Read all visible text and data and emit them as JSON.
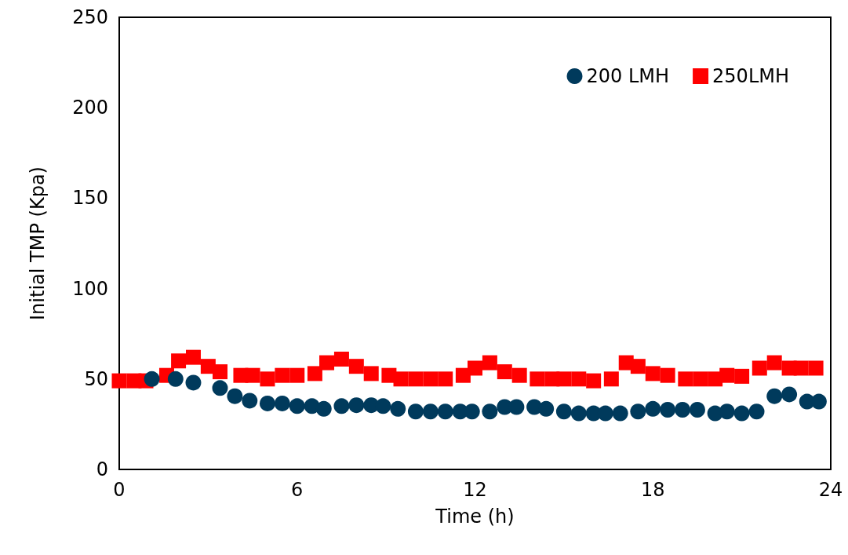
{
  "chart_data": {
    "type": "scatter",
    "xlabel": "Time (h)",
    "ylabel": "Initial TMP (Kpa)",
    "xlim": [
      0,
      24
    ],
    "xticks": [
      0,
      6,
      12,
      18,
      24
    ],
    "ylim": [
      0,
      250
    ],
    "yticks": [
      0,
      50,
      100,
      150,
      200,
      250
    ],
    "grid": false,
    "legend": "top right",
    "series": [
      {
        "name": "200 LMH",
        "color": "#003a5c",
        "marker": "circle",
        "x": [
          1.1,
          1.9,
          2.5,
          3.4,
          3.9,
          4.4,
          5.0,
          5.5,
          6.0,
          6.5,
          6.9,
          7.5,
          8.0,
          8.5,
          8.9,
          9.4,
          10.0,
          10.5,
          11.0,
          11.5,
          11.9,
          12.5,
          13.0,
          13.4,
          14.0,
          14.4,
          15.0,
          15.5,
          16.0,
          16.4,
          16.9,
          17.5,
          18.0,
          18.5,
          19.0,
          19.5,
          20.1,
          20.5,
          21.0,
          21.5,
          22.1,
          22.6,
          23.2,
          23.6
        ],
        "values": [
          50,
          50,
          48,
          45,
          40.5,
          38,
          36.5,
          36.5,
          35,
          35,
          33.5,
          35,
          35.5,
          35.5,
          35,
          33.5,
          32,
          32,
          32,
          32,
          32,
          32,
          34.5,
          34.5,
          34.5,
          33.5,
          32,
          31,
          31,
          31,
          31,
          32,
          33.5,
          33,
          33,
          33,
          31,
          32,
          31,
          32,
          40.5,
          41.5,
          37.5,
          37.5
        ]
      },
      {
        "name": "250LMH",
        "color": "#ff0000",
        "marker": "square",
        "x": [
          0,
          0.5,
          0.9,
          1.6,
          2.0,
          2.5,
          3.0,
          3.4,
          4.1,
          4.5,
          5.0,
          5.5,
          6.0,
          6.6,
          7.0,
          7.5,
          8.0,
          8.5,
          9.1,
          9.5,
          10.0,
          10.5,
          11.0,
          11.6,
          12.0,
          12.5,
          13.0,
          13.5,
          14.1,
          14.6,
          15.0,
          15.5,
          16.0,
          16.6,
          17.1,
          17.5,
          18.0,
          18.5,
          19.1,
          19.6,
          20.1,
          20.5,
          21.0,
          21.6,
          22.1,
          22.6,
          23.0,
          23.5
        ],
        "values": [
          49,
          49,
          49,
          52,
          60,
          62,
          57,
          54,
          52,
          52,
          50,
          52,
          52,
          53,
          59,
          61,
          57,
          53,
          52,
          50,
          50,
          50,
          50,
          52,
          56,
          59,
          54,
          52,
          50,
          50,
          50,
          50,
          49,
          50,
          59,
          57,
          53,
          52,
          50,
          50,
          50,
          52,
          51.5,
          56,
          59,
          56,
          56,
          56
        ]
      }
    ]
  }
}
